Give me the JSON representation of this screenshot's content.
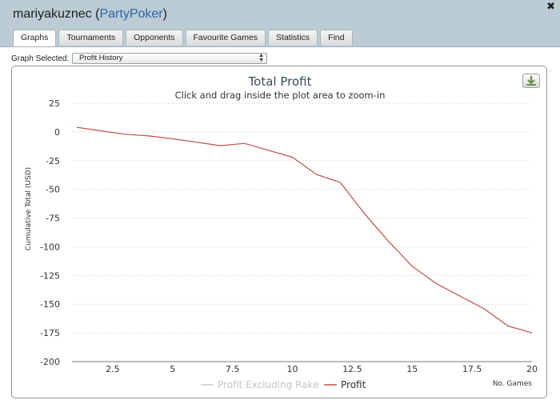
{
  "window": {
    "user": "mariyakuznec",
    "paren_open": "(",
    "site": "PartyPoker",
    "paren_close": ")",
    "close_glyph": "✖"
  },
  "tabs": [
    {
      "label": "Graphs",
      "active": true
    },
    {
      "label": "Tournaments",
      "active": false
    },
    {
      "label": "Opponents",
      "active": false
    },
    {
      "label": "Favourite Games",
      "active": false
    },
    {
      "label": "Statistics",
      "active": false
    },
    {
      "label": "Find",
      "active": false
    }
  ],
  "graph_select": {
    "label": "Graph Selected:",
    "value": "Profit History"
  },
  "export_icon": "download-icon",
  "colors": {
    "header_bg": "#bcccd4",
    "profit_line": "#c0504d",
    "excl_rake_line": "#cccccc",
    "grid": "#c8c8c8"
  },
  "chart_data": {
    "type": "line",
    "title": "Total Profit",
    "subtitle": "Click and drag inside the plot area to zoom-in",
    "ylabel": "Cumulative Total (USD)",
    "xlabel": "No. Games",
    "xlim": [
      0.8,
      20
    ],
    "ylim": [
      -200,
      25
    ],
    "x_ticks": [
      2.5,
      5,
      7.5,
      10,
      12.5,
      15,
      17.5,
      20
    ],
    "y_ticks": [
      25,
      0,
      -25,
      -50,
      -75,
      -100,
      -125,
      -150,
      -175,
      -200
    ],
    "grid": "horizontal",
    "legend_position": "bottom-center",
    "legend": [
      "Profit Excluding Rake",
      "Profit"
    ],
    "series": [
      {
        "name": "Profit",
        "x": [
          1,
          2,
          3,
          4,
          5,
          6,
          7,
          8,
          9,
          10,
          11,
          12,
          13,
          14,
          15,
          16,
          17,
          18,
          19,
          20
        ],
        "values": [
          4,
          1,
          -2,
          -3.5,
          -6,
          -9,
          -12,
          -10,
          -16,
          -22,
          -37,
          -44,
          -71,
          -95,
          -117,
          -132,
          -143,
          -154,
          -169,
          -175
        ]
      }
    ]
  }
}
